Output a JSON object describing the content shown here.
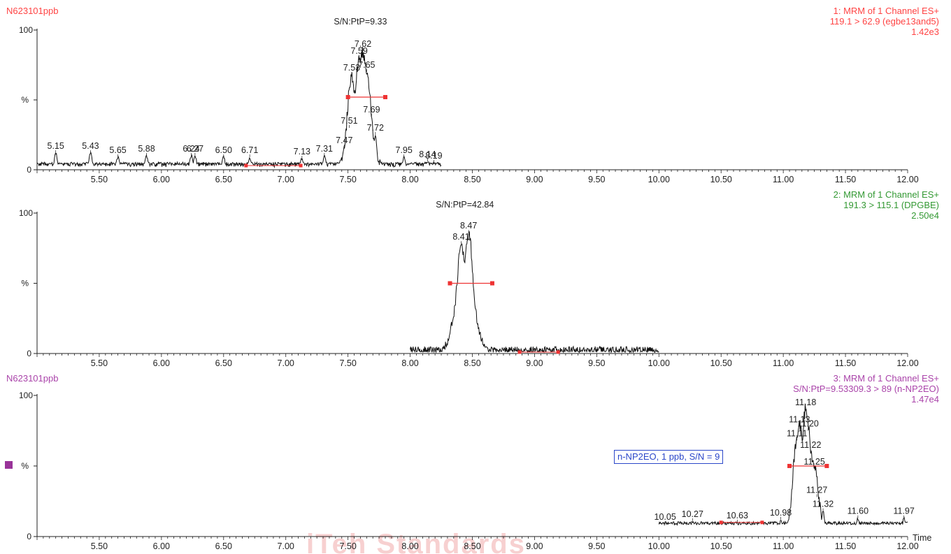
{
  "chart_data": {
    "type": "line",
    "x_axis": {
      "range": [
        5.0,
        12.0
      ],
      "ticks": [
        "5.50",
        "6.00",
        "6.50",
        "7.00",
        "7.50",
        "8.00",
        "8.50",
        "9.00",
        "9.50",
        "10.00",
        "10.50",
        "11.00",
        "11.50",
        "12.00"
      ],
      "label": "Time"
    },
    "y_axis": {
      "range": [
        0,
        100
      ],
      "ticks": [
        "0",
        "100"
      ],
      "mid_label": "%"
    },
    "watermark": "iTeh Standards",
    "panels": [
      {
        "sample": "N623101ppb",
        "color": "#ff4444",
        "header": [
          "1: MRM of 1 Channel ES+",
          "119.1 > 62.9 (egbe13and5)",
          "1.42e3"
        ],
        "sn_label": "S/N:PtP=9.33",
        "sn_x": 7.6,
        "trace_range": [
          5.0,
          8.25
        ],
        "baseline_level": 3,
        "noise": 3.5,
        "peaks": [
          {
            "time": 5.15,
            "height": 12,
            "label": "5.15"
          },
          {
            "time": 5.43,
            "height": 12,
            "label": "5.43"
          },
          {
            "time": 5.65,
            "height": 9,
            "label": "5.65"
          },
          {
            "time": 5.88,
            "height": 10,
            "label": "5.88"
          },
          {
            "time": 6.24,
            "height": 10,
            "label": "6.24"
          },
          {
            "time": 6.27,
            "height": 10,
            "label": "6.27"
          },
          {
            "time": 6.5,
            "height": 9,
            "label": "6.50"
          },
          {
            "time": 6.71,
            "height": 9,
            "label": "6.71"
          },
          {
            "time": 7.13,
            "height": 8,
            "label": "7.13"
          },
          {
            "time": 7.31,
            "height": 10,
            "label": "7.31"
          },
          {
            "time": 7.47,
            "height": 16,
            "label": "7.47"
          },
          {
            "time": 7.51,
            "height": 30,
            "label": "7.51"
          },
          {
            "time": 7.53,
            "height": 68,
            "label": "7.53"
          },
          {
            "time": 7.59,
            "height": 80,
            "label": "7.59"
          },
          {
            "time": 7.62,
            "height": 85,
            "label": "7.62"
          },
          {
            "time": 7.65,
            "height": 70,
            "label": "7.65"
          },
          {
            "time": 7.69,
            "height": 38,
            "label": "7.69"
          },
          {
            "time": 7.72,
            "height": 25,
            "label": "7.72"
          },
          {
            "time": 7.95,
            "height": 9,
            "label": "7.95"
          },
          {
            "time": 8.14,
            "height": 6,
            "label": "8.14"
          },
          {
            "time": 8.19,
            "height": 5,
            "label": "8.19"
          }
        ],
        "noise_markers": [
          {
            "start": 6.68,
            "end": 7.12,
            "level": 3
          }
        ],
        "width_bar": {
          "start": 7.5,
          "end": 7.8,
          "level": 52
        }
      },
      {
        "sample": "",
        "color": "#339933",
        "header": [
          "2: MRM of 1 Channel ES+",
          "191.3 > 115.1 (DPGBE)",
          "2.50e4"
        ],
        "sn_label": "S/N:PtP=42.84",
        "sn_x": 8.44,
        "trace_range": [
          8.0,
          10.0
        ],
        "baseline_level": 1,
        "noise": 0.8,
        "peaks": [
          {
            "time": 8.41,
            "height": 78,
            "label": "8.41"
          },
          {
            "time": 8.47,
            "height": 86,
            "label": "8.47"
          }
        ],
        "noise_markers": [
          {
            "start": 8.88,
            "end": 9.19,
            "level": 1
          }
        ],
        "width_bar": {
          "start": 8.32,
          "end": 8.66,
          "level": 50
        }
      },
      {
        "sample": "N623101ppb",
        "color": "#aa44aa",
        "header": [
          "3: MRM of 1 Channel ES+",
          "S/N:PtP=9.53309.3 > 89 (n-NP2EO)",
          "1.47e4"
        ],
        "sn_label": "",
        "sn_x": 11.15,
        "trace_range": [
          10.0,
          12.0
        ],
        "baseline_level": 9,
        "noise": 2.2,
        "peaks": [
          {
            "time": 10.05,
            "height": 9,
            "label": "10.05"
          },
          {
            "time": 10.27,
            "height": 11,
            "label": "10.27"
          },
          {
            "time": 10.63,
            "height": 10,
            "label": "10.63"
          },
          {
            "time": 10.98,
            "height": 12,
            "label": "10.98"
          },
          {
            "time": 11.11,
            "height": 68,
            "label": "11.11"
          },
          {
            "time": 11.13,
            "height": 78,
            "label": "11.13"
          },
          {
            "time": 11.18,
            "height": 90,
            "label": "11.18"
          },
          {
            "time": 11.2,
            "height": 75,
            "label": "11.20"
          },
          {
            "time": 11.22,
            "height": 60,
            "label": "11.22"
          },
          {
            "time": 11.25,
            "height": 48,
            "label": "11.25"
          },
          {
            "time": 11.27,
            "height": 28,
            "label": "11.27"
          },
          {
            "time": 11.32,
            "height": 18,
            "label": "11.32"
          },
          {
            "time": 11.6,
            "height": 13,
            "label": "11.60"
          },
          {
            "time": 11.97,
            "height": 13,
            "label": "11.97"
          }
        ],
        "noise_markers": [
          {
            "start": 10.5,
            "end": 10.83,
            "level": 10
          }
        ],
        "width_bar": {
          "start": 11.05,
          "end": 11.35,
          "level": 50
        }
      }
    ]
  },
  "annotation": {
    "text": "n-NP2EO, 1 ppb, S/N = 9",
    "color": "#2b47c9"
  },
  "legend_marker": {
    "color": "#993399"
  }
}
